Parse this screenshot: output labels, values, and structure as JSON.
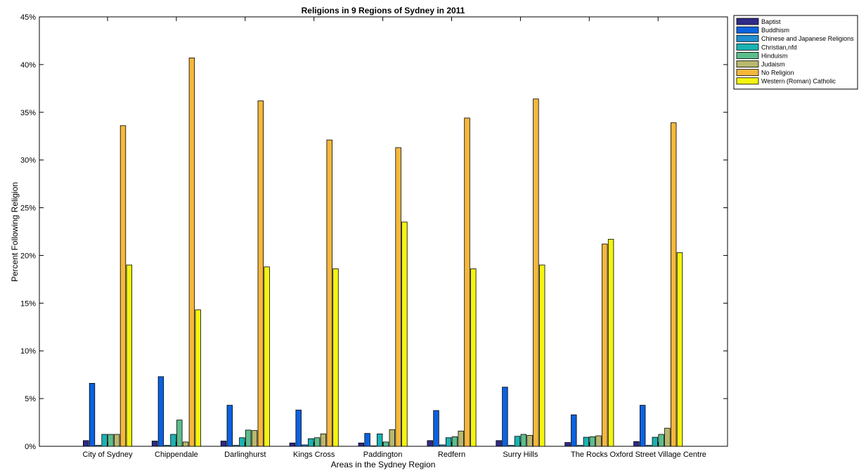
{
  "chart_data": {
    "type": "bar",
    "title": "Religions in 9 Regions of Sydney in 2011",
    "xlabel": "Areas in the Sydney Region",
    "ylabel": "Percent Following Religion",
    "ylim": [
      0,
      45
    ],
    "yticks": [
      0,
      5,
      10,
      15,
      20,
      25,
      30,
      35,
      40,
      45
    ],
    "ytick_labels": [
      "0%",
      "5%",
      "10%",
      "15%",
      "20%",
      "25%",
      "30%",
      "35%",
      "40%",
      "45%"
    ],
    "grid": false,
    "legend_position": "outside-top-right",
    "categories": [
      "City of Sydney",
      "Chippendale",
      "Darlinghurst",
      "Kings Cross",
      "Paddington",
      "Redfern",
      "Surry Hills",
      "The Rocks",
      "Oxford Street Village Centre"
    ],
    "series": [
      {
        "name": "Baptist",
        "color": "#2e2a86",
        "values": [
          0.6,
          0.55,
          0.55,
          0.35,
          0.35,
          0.6,
          0.6,
          0.4,
          0.5
        ]
      },
      {
        "name": "Buddhism",
        "color": "#0b62e0",
        "values": [
          6.6,
          7.3,
          4.3,
          3.8,
          1.35,
          3.75,
          6.2,
          3.3,
          4.3
        ]
      },
      {
        "name": "Chinese and Japanese Religions",
        "color": "#1e8fd1",
        "values": [
          0.1,
          0.1,
          0.1,
          0.15,
          0.05,
          0.15,
          0.1,
          0.1,
          0.1
        ]
      },
      {
        "name": "Christian,nfd",
        "color": "#1ab3b3",
        "values": [
          1.25,
          1.25,
          0.9,
          0.8,
          1.3,
          0.9,
          1.05,
          0.95,
          0.95
        ]
      },
      {
        "name": "Hinduism",
        "color": "#5cbd8c",
        "values": [
          1.25,
          2.75,
          1.7,
          0.9,
          0.45,
          1.0,
          1.25,
          1.0,
          1.25
        ]
      },
      {
        "name": "Judaism",
        "color": "#b8b86e",
        "values": [
          1.25,
          0.45,
          1.65,
          1.3,
          1.75,
          1.6,
          1.15,
          1.1,
          1.9
        ]
      },
      {
        "name": "No Religion",
        "color": "#f5b83d",
        "values": [
          33.6,
          40.7,
          36.2,
          32.1,
          31.3,
          34.4,
          36.4,
          21.2,
          33.9
        ]
      },
      {
        "name": "Western (Roman) Catholic",
        "color": "#f5f50f",
        "values": [
          19.0,
          14.3,
          18.8,
          18.6,
          23.5,
          18.6,
          19.0,
          21.7,
          20.3
        ]
      }
    ]
  }
}
